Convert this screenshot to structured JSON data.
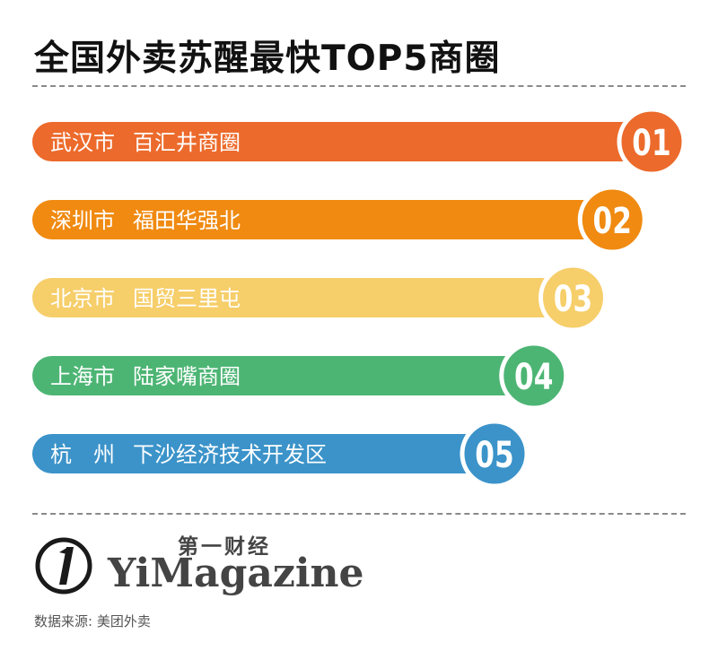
{
  "title": "全国外卖苏醒最快TOP5商圈",
  "chart_data": {
    "type": "bar",
    "categories": [
      "01",
      "02",
      "03",
      "04",
      "05"
    ],
    "labels": [
      {
        "city": "武汉市",
        "area": "百汇井商圈"
      },
      {
        "city": "深圳市",
        "area": "福田华强北"
      },
      {
        "city": "北京市",
        "area": "国贸三里屯"
      },
      {
        "city": "上海市",
        "area": "陆家嘴商圈"
      },
      {
        "city": "杭　州",
        "area": "下沙经济技术开发区"
      }
    ],
    "ranks": [
      1,
      2,
      3,
      4,
      5
    ],
    "colors": [
      "#EC6A2B",
      "#F08A11",
      "#F6CE6A",
      "#4DB574",
      "#3B93C9"
    ]
  },
  "brand": {
    "cn": "第一财经",
    "en": "YiMagazine"
  },
  "source": "数据来源: 美团外卖"
}
